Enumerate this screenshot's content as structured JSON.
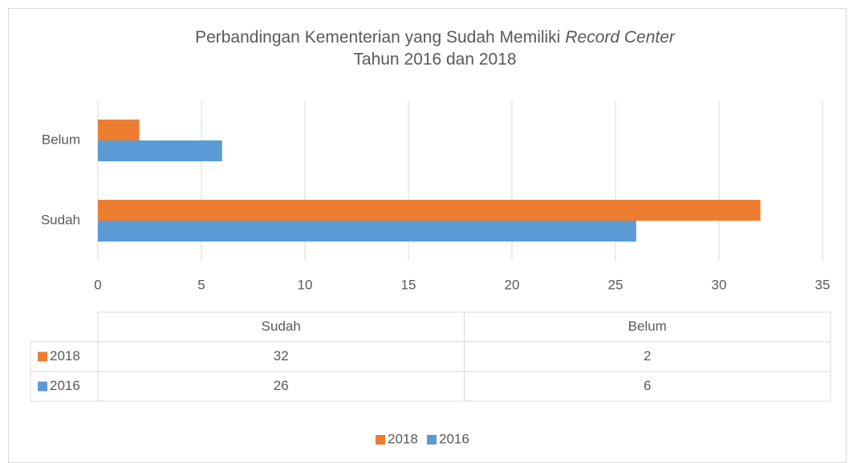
{
  "chart_data": {
    "type": "bar",
    "orientation": "horizontal",
    "title": [
      "Perbandingan Kementerian yang Sudah Memiliki",
      "Record Center",
      "Tahun 2016 dan 2018"
    ],
    "categories": [
      "Sudah",
      "Belum"
    ],
    "series": [
      {
        "name": "2018",
        "color": "#ed7d31",
        "values": [
          32,
          2
        ]
      },
      {
        "name": "2016",
        "color": "#5b9bd5",
        "values": [
          26,
          6
        ]
      }
    ],
    "xlim": [
      0,
      35
    ],
    "xticks": [
      0,
      5,
      10,
      15,
      20,
      25,
      30,
      35
    ],
    "grid": true,
    "data_table": true,
    "legend": "bottom"
  }
}
